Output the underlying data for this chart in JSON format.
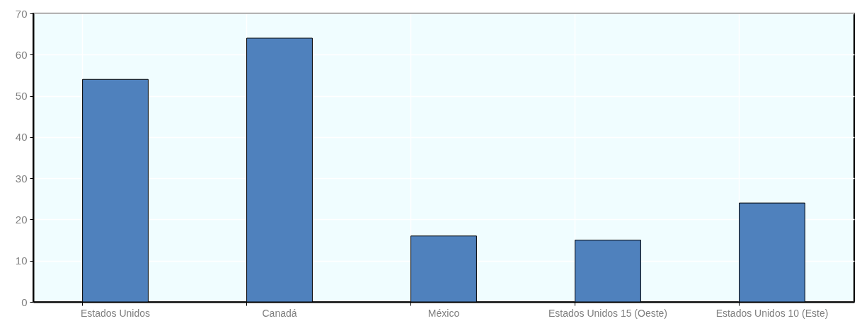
{
  "chart_data": {
    "type": "bar",
    "categories": [
      "Estados Unidos",
      "Canadá",
      "México",
      "Estados Unidos 15 (Oeste)",
      "Estados Unidos 10 (Este)"
    ],
    "values": [
      54,
      64,
      16,
      15,
      24
    ],
    "color": "#4f81bd",
    "ylim": [
      0,
      70
    ],
    "yticks": [
      0,
      10,
      20,
      30,
      40,
      50,
      60,
      70
    ],
    "grid": true
  }
}
